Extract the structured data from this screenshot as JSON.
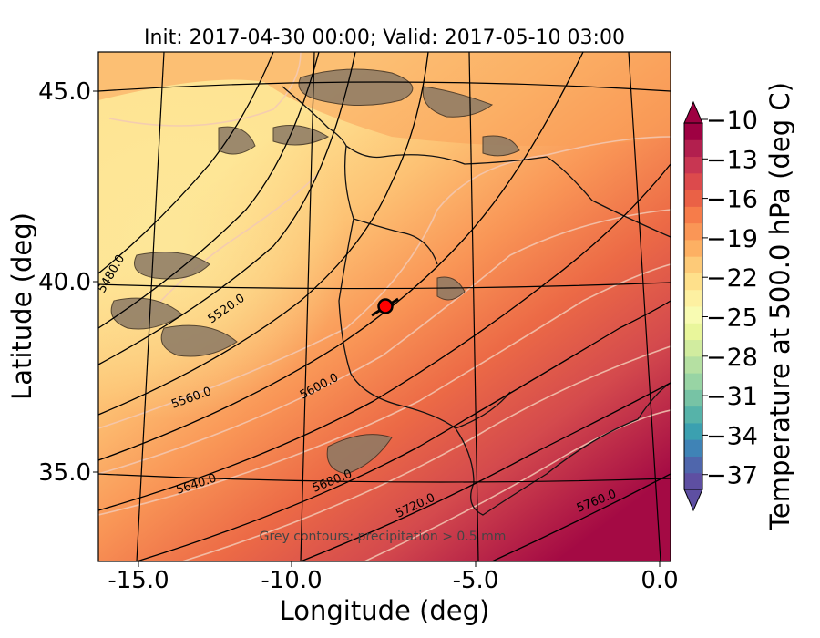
{
  "title": "Init: 2017-04-30 00:00; Valid: 2017-05-10 03:00",
  "xlabel": "Longitude (deg)",
  "ylabel": "Latitude (deg)",
  "x_ticks": [
    "-15.0",
    "-10.0",
    "-5.0",
    "0.0"
  ],
  "y_ticks": [
    "45.0",
    "40.0",
    "35.0"
  ],
  "note": "Grey contours: precipitation > 0.5 mm",
  "colorbar": {
    "label": "Temperature at 500.0 hPa (deg C)",
    "ticks": [
      "−10",
      "−13",
      "−16",
      "−19",
      "−22",
      "−25",
      "−28",
      "−31",
      "−34",
      "−37"
    ],
    "colors": [
      "#5e4fa2",
      "#4f66ac",
      "#3f83b6",
      "#3ba0b0",
      "#56b3a9",
      "#77c3a5",
      "#98d4a4",
      "#b5e0a2",
      "#d1ec9f",
      "#e9f69b",
      "#f8fbb2",
      "#fdf0a1",
      "#fee08b",
      "#fdca78",
      "#fdb063",
      "#fa9656",
      "#f67c4a",
      "#ea6146",
      "#dc4a4c",
      "#c83652",
      "#b21f4e",
      "#9e0142"
    ]
  },
  "contour_labels": [
    "5480.0",
    "5520.0",
    "5560.0",
    "5600.0",
    "5640.0",
    "5680.0",
    "5720.0",
    "5760.0"
  ],
  "chart_data": {
    "type": "heatmap",
    "title": "Init: 2017-04-30 00:00; Valid: 2017-05-10 03:00",
    "xlabel": "Longitude (deg)",
    "ylabel": "Latitude (deg)",
    "xlim": [
      -16,
      0.1
    ],
    "ylim": [
      32.5,
      46
    ],
    "colorbar_range": [
      -38.5,
      -8.5
    ],
    "colorbar_label": "Temperature at 500.0 hPa (deg C)",
    "geopotential_contour_levels": [
      5480.0,
      5520.0,
      5560.0,
      5600.0,
      5640.0,
      5680.0,
      5720.0,
      5760.0
    ],
    "marker": {
      "lon": -7.6,
      "lat": 39.3,
      "color": "#ff0000"
    }
  }
}
